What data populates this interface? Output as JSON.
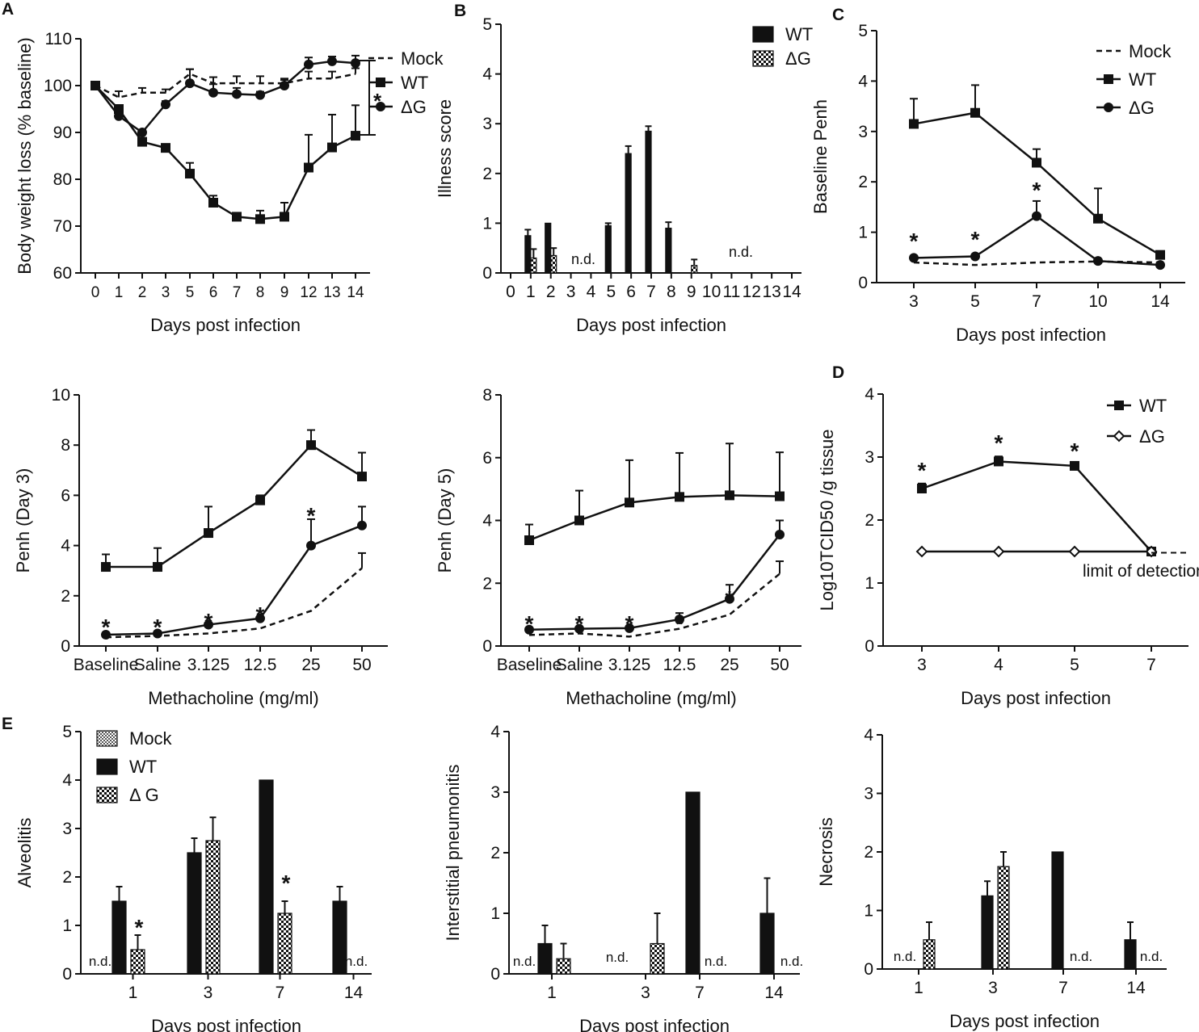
{
  "panel_labels": {
    "A": "A",
    "B": "B",
    "C": "C",
    "D": "D",
    "E": "E"
  },
  "chart_data": [
    {
      "id": "weight",
      "type": "line",
      "ylabel": "Body weight loss (% baseline)",
      "xlabel": "Days post infection",
      "ylim": [
        60,
        110
      ],
      "yticks": [
        "60",
        "70",
        "80",
        "90",
        "100",
        "110"
      ],
      "categories": [
        "0",
        "1",
        "2",
        "3",
        "5",
        "6",
        "7",
        "8",
        "9",
        "12",
        "13",
        "14"
      ],
      "series": [
        {
          "name": "Mock",
          "style": "dashed",
          "marker": "none",
          "values": [
            100,
            97.5,
            98.5,
            98.5,
            102.5,
            100.5,
            100.5,
            100.5,
            100.5,
            101.5,
            101.5,
            102.5
          ],
          "err": [
            0,
            1.3,
            1,
            0.7,
            1,
            1.3,
            1.5,
            1.5,
            1,
            1.5,
            1.5,
            1.2
          ]
        },
        {
          "name": "WT",
          "style": "solid",
          "marker": "square",
          "values": [
            100,
            95,
            88,
            86.7,
            81.2,
            75,
            72,
            71.5,
            72,
            82.5,
            86.8,
            89.3
          ],
          "err": [
            0,
            0.5,
            0.4,
            0.4,
            2.3,
            1.5,
            0.5,
            1.8,
            3,
            7,
            7,
            6.5
          ]
        },
        {
          "name": "ΔG",
          "style": "solid",
          "marker": "circle",
          "values": [
            100,
            93.5,
            90,
            96,
            100.5,
            98.5,
            98.2,
            98,
            100,
            104.5,
            105.2,
            104.8
          ],
          "err": [
            0,
            0.5,
            0.6,
            0.7,
            3,
            1.8,
            1.3,
            0.7,
            1.2,
            1.5,
            1,
            1.6
          ]
        }
      ],
      "significance": "*"
    },
    {
      "id": "illness",
      "type": "bar",
      "ylabel": "Illness score",
      "xlabel": "Days post infection",
      "ylim": [
        0,
        5
      ],
      "yticks": [
        "0",
        "1",
        "2",
        "3",
        "4",
        "5"
      ],
      "categories": [
        "0",
        "1",
        "2",
        "3",
        "4",
        "5",
        "6",
        "7",
        "8",
        "9",
        "10",
        "11",
        "12",
        "13",
        "14"
      ],
      "series": [
        {
          "name": "WT",
          "fill": "solid",
          "values": [
            0,
            0.75,
            1,
            0,
            0,
            0.95,
            2.4,
            2.85,
            0.9,
            0,
            0,
            0,
            0,
            0,
            0
          ],
          "err": [
            0,
            0.12,
            0,
            0,
            0,
            0.05,
            0.15,
            0.1,
            0.12,
            0,
            0,
            0,
            0,
            0,
            0
          ]
        },
        {
          "name": "ΔG",
          "fill": "checker",
          "values": [
            0,
            0.3,
            0.35,
            0,
            0,
            0,
            0,
            0,
            0,
            0.15,
            0,
            0,
            0,
            0,
            0
          ],
          "err": [
            0,
            0.18,
            0.15,
            0,
            0,
            0,
            0,
            0,
            0,
            0.12,
            0,
            0,
            0,
            0,
            0
          ]
        }
      ],
      "annotations": [
        "n.d.",
        "n.d."
      ]
    },
    {
      "id": "baseline_penh",
      "type": "line",
      "ylabel": "Baseline Penh",
      "xlabel": "Days post infection",
      "ylim": [
        0,
        5
      ],
      "yticks": [
        "0",
        "1",
        "2",
        "3",
        "4",
        "5"
      ],
      "categories": [
        "3",
        "5",
        "7",
        "10",
        "14"
      ],
      "series": [
        {
          "name": "Mock",
          "style": "dashed",
          "marker": "none",
          "values": [
            0.4,
            0.35,
            0.4,
            0.42,
            0.4
          ],
          "err": [
            0,
            0,
            0,
            0,
            0
          ]
        },
        {
          "name": "WT",
          "style": "solid",
          "marker": "square",
          "values": [
            3.15,
            3.37,
            2.38,
            1.27,
            0.55
          ],
          "err": [
            0.5,
            0.55,
            0.27,
            0.6,
            0.05
          ]
        },
        {
          "name": "ΔG",
          "style": "solid",
          "marker": "circle",
          "values": [
            0.49,
            0.52,
            1.32,
            0.43,
            0.35
          ],
          "err": [
            0,
            0,
            0.3,
            0,
            0
          ]
        }
      ],
      "significance": [
        "*",
        "*",
        "*"
      ]
    },
    {
      "id": "penh_day3",
      "type": "line",
      "ylabel": "Penh (Day 3)",
      "xlabel": "Methacholine (mg/ml)",
      "ylim": [
        0,
        10
      ],
      "yticks": [
        "0",
        "2",
        "4",
        "6",
        "8",
        "10"
      ],
      "categories": [
        "Baseline",
        "Saline",
        "3.125",
        "12.5",
        "25",
        "50"
      ],
      "series": [
        {
          "name": "Mock",
          "style": "dashed",
          "marker": "none",
          "values": [
            0.35,
            0.4,
            0.5,
            0.7,
            1.4,
            3.1
          ],
          "err": [
            0,
            0,
            0,
            0,
            0,
            0.6
          ]
        },
        {
          "name": "WT",
          "style": "solid",
          "marker": "square",
          "values": [
            3.15,
            3.15,
            4.5,
            5.8,
            8.0,
            6.75
          ],
          "err": [
            0.5,
            0.75,
            1.05,
            0.2,
            0.6,
            0.95
          ]
        },
        {
          "name": "ΔG",
          "style": "solid",
          "marker": "circle",
          "values": [
            0.45,
            0.5,
            0.85,
            1.1,
            4.0,
            4.8
          ],
          "err": [
            0,
            0,
            0,
            0,
            1.05,
            0.75
          ]
        }
      ],
      "significance": [
        "*",
        "*",
        "*",
        "*",
        "*"
      ]
    },
    {
      "id": "penh_day5",
      "type": "line",
      "ylabel": "Penh (Day 5)",
      "xlabel": "Methacholine (mg/ml)",
      "ylim": [
        0,
        8
      ],
      "yticks": [
        "0",
        "2",
        "4",
        "6",
        "8"
      ],
      "categories": [
        "Baseline",
        "Saline",
        "3.125",
        "12.5",
        "25",
        "50"
      ],
      "series": [
        {
          "name": "Mock",
          "style": "dashed",
          "marker": "none",
          "values": [
            0.35,
            0.4,
            0.3,
            0.55,
            1.0,
            2.3
          ],
          "err": [
            0,
            0,
            0,
            0,
            0,
            0.4
          ]
        },
        {
          "name": "WT",
          "style": "solid",
          "marker": "square",
          "values": [
            3.37,
            4.0,
            4.57,
            4.75,
            4.8,
            4.77
          ],
          "err": [
            0.5,
            0.95,
            1.35,
            1.4,
            1.65,
            1.4
          ]
        },
        {
          "name": "ΔG",
          "style": "solid",
          "marker": "circle",
          "values": [
            0.52,
            0.55,
            0.57,
            0.85,
            1.5,
            3.55
          ],
          "err": [
            0,
            0,
            0,
            0.2,
            0.45,
            0.45
          ]
        }
      ],
      "significance": [
        "*",
        "*",
        "*",
        "*",
        "*"
      ]
    },
    {
      "id": "titer",
      "type": "line",
      "ylabel": "Log10TCID50 /g tissue",
      "xlabel": "Days post infection",
      "ylim": [
        0,
        4
      ],
      "yticks": [
        "0",
        "1",
        "2",
        "3",
        "4"
      ],
      "categories": [
        "3",
        "4",
        "5",
        "7"
      ],
      "series": [
        {
          "name": "WT",
          "style": "solid",
          "marker": "square",
          "values": [
            2.5,
            2.93,
            2.86,
            1.5
          ],
          "err": [
            0.08,
            0.08,
            0.04,
            0
          ]
        },
        {
          "name": "ΔG",
          "style": "solid",
          "marker": "diamond",
          "values": [
            1.5,
            1.5,
            1.5,
            null
          ],
          "err": [
            0,
            0,
            0,
            0
          ]
        }
      ],
      "limit_of_detection": {
        "value": 1.48,
        "label": "limit of detection"
      },
      "significance": [
        "*",
        "*",
        "*"
      ]
    },
    {
      "id": "alveolitis",
      "type": "bar",
      "ylabel": "Alveolitis",
      "xlabel": "Days post infection",
      "ylim": [
        0,
        5
      ],
      "yticks": [
        "0",
        "1",
        "2",
        "3",
        "4",
        "5"
      ],
      "categories": [
        "1",
        "3",
        "7",
        "14"
      ],
      "series": [
        {
          "name": "Mock",
          "fill": "fine",
          "values": [
            0,
            0,
            0,
            0
          ],
          "err": [
            0,
            0,
            0,
            0
          ]
        },
        {
          "name": "WT",
          "fill": "solid",
          "values": [
            1.5,
            2.5,
            4.0,
            1.5
          ],
          "err": [
            0.3,
            0.3,
            0,
            0.3
          ]
        },
        {
          "name": "Δ G",
          "fill": "checker",
          "values": [
            0.5,
            2.75,
            1.25,
            0
          ],
          "err": [
            0.3,
            0.48,
            0.25,
            0
          ]
        }
      ],
      "annotations": [
        "n.d.",
        "n.d."
      ],
      "significance": [
        "*",
        "*"
      ]
    },
    {
      "id": "pneumonitis",
      "type": "bar",
      "ylabel": "Interstitial pneumonitis",
      "xlabel": "Days post infection",
      "ylim": [
        0,
        4
      ],
      "yticks": [
        "0",
        "1",
        "2",
        "3",
        "4"
      ],
      "categories": [
        "1",
        "3",
        "7",
        "14"
      ],
      "series": [
        {
          "name": "WT",
          "fill": "solid",
          "values": [
            0.5,
            0,
            3.0,
            1.0
          ],
          "err": [
            0.3,
            0,
            0,
            0.58
          ]
        },
        {
          "name": "ΔG",
          "fill": "checker",
          "values": [
            0.25,
            0.5,
            0,
            0
          ],
          "err": [
            0.25,
            0.5,
            0,
            0
          ]
        }
      ],
      "annotations": [
        "n.d.",
        "n.d.",
        "n.d.",
        "n.d."
      ]
    },
    {
      "id": "necrosis",
      "type": "bar",
      "ylabel": "Necrosis",
      "xlabel": "Days post infection",
      "ylim": [
        0,
        4
      ],
      "yticks": [
        "0",
        "1",
        "2",
        "3",
        "4"
      ],
      "categories": [
        "1",
        "3",
        "7",
        "14"
      ],
      "series": [
        {
          "name": "WT",
          "fill": "solid",
          "values": [
            0,
            1.25,
            2.0,
            0.5
          ],
          "err": [
            0,
            0.25,
            0,
            0.3
          ]
        },
        {
          "name": "ΔG",
          "fill": "checker",
          "values": [
            0.5,
            1.75,
            0,
            0
          ],
          "err": [
            0.3,
            0.25,
            0,
            0
          ]
        }
      ],
      "annotations": [
        "n.d.",
        "n.d.",
        "n.d."
      ]
    }
  ]
}
